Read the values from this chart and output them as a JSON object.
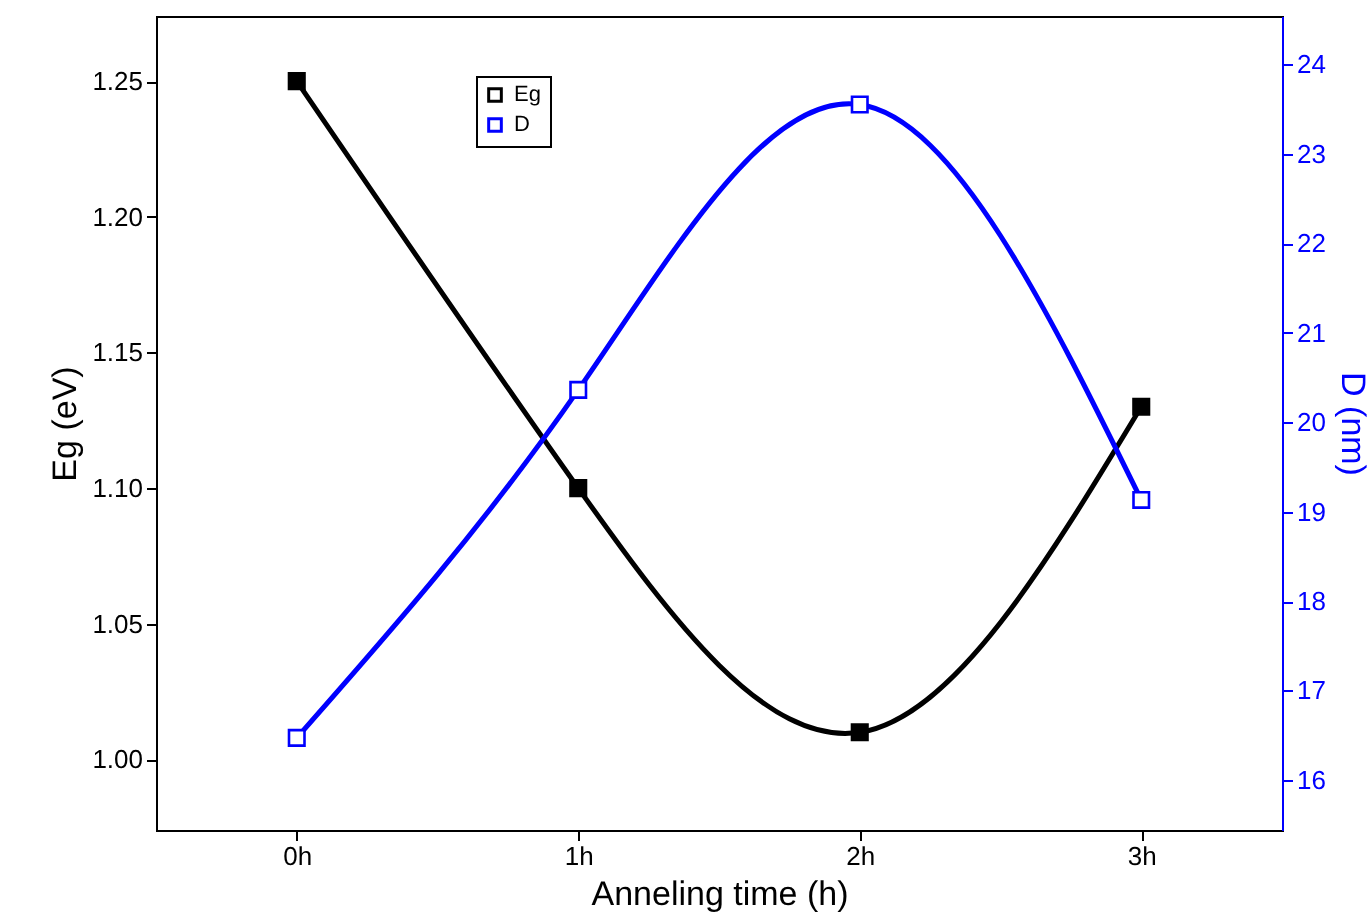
{
  "chart_data": {
    "type": "line",
    "xlabel": "Anneling time (h)",
    "ylabel": "Eg (eV)",
    "y2label": "D (nm)",
    "categories": [
      "0h",
      "1h",
      "2h",
      "3h"
    ],
    "series": [
      {
        "name": "Eg",
        "color": "#000000",
        "values": [
          1.25,
          1.1,
          1.01,
          1.13
        ]
      },
      {
        "name": "D",
        "color": "#0000ff",
        "axis": "y2",
        "values": [
          16.47,
          20.36,
          23.55,
          19.13
        ]
      }
    ],
    "ylim": [
      0.974,
      1.274
    ],
    "yticks": [
      {
        "value": 1.0,
        "label": "1.00"
      },
      {
        "value": 1.05,
        "label": "1.05"
      },
      {
        "value": 1.1,
        "label": "1.10"
      },
      {
        "value": 1.15,
        "label": "1.15"
      },
      {
        "value": 1.2,
        "label": "1.20"
      },
      {
        "value": 1.25,
        "label": "1.25"
      }
    ],
    "y2lim": [
      15.44,
      24.54
    ],
    "y2ticks": [
      16,
      17,
      18,
      19,
      20,
      21,
      22,
      23,
      24
    ],
    "marker": "square",
    "legend": "top left",
    "grid": false
  }
}
